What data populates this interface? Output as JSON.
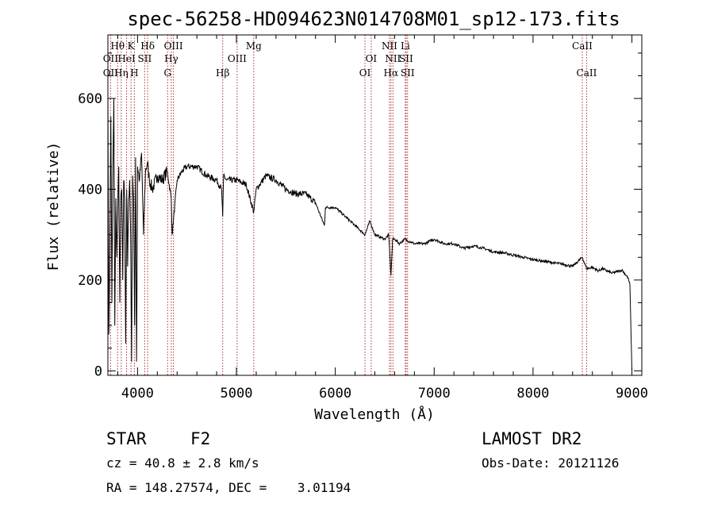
{
  "chart_data": {
    "type": "line",
    "title": "spec-56258-HD094623N014708M01_sp12-173.fits",
    "xlabel": "Wavelength (Å)",
    "ylabel": "Flux (relative)",
    "xlim": [
      3700,
      9100
    ],
    "ylim": [
      -10,
      740
    ],
    "x_ticks": [
      4000,
      5000,
      6000,
      7000,
      8000,
      9000
    ],
    "y_ticks": [
      0,
      200,
      400,
      600
    ],
    "grid": false,
    "series": [
      {
        "x": [
          3700,
          3710,
          3720,
          3730,
          3740,
          3750,
          3760,
          3770,
          3780,
          3790,
          3800,
          3810,
          3820,
          3830,
          3840,
          3850,
          3860,
          3870,
          3880,
          3890,
          3900,
          3910,
          3920,
          3930,
          3940,
          3950,
          3960,
          3970,
          3980,
          3990,
          4000,
          4020,
          4040,
          4060,
          4080,
          4100,
          4120,
          4150,
          4200,
          4250,
          4300,
          4340,
          4350,
          4400,
          4450,
          4500,
          4600,
          4700,
          4800,
          4850,
          4861,
          4870,
          4900,
          5000,
          5100,
          5175,
          5200,
          5300,
          5400,
          5500,
          5600,
          5700,
          5800,
          5890,
          5900,
          6000,
          6100,
          6200,
          6300,
          6350,
          6400,
          6500,
          6540,
          6563,
          6580,
          6600,
          6650,
          6700,
          6800,
          6900,
          7000,
          7100,
          7200,
          7300,
          7400,
          7500,
          7600,
          7700,
          7800,
          7900,
          8000,
          8100,
          8200,
          8300,
          8400,
          8498,
          8542,
          8600,
          8662,
          8700,
          8800,
          8900,
          8960,
          8980,
          9000
        ],
        "y": [
          620,
          80,
          300,
          560,
          150,
          420,
          600,
          100,
          380,
          250,
          350,
          450,
          150,
          380,
          400,
          200,
          420,
          380,
          60,
          400,
          230,
          380,
          420,
          300,
          20,
          430,
          380,
          100,
          470,
          20,
          450,
          420,
          480,
          300,
          440,
          460,
          420,
          400,
          430,
          420,
          440,
          380,
          300,
          420,
          440,
          450,
          450,
          430,
          420,
          400,
          340,
          430,
          420,
          420,
          410,
          350,
          400,
          430,
          420,
          400,
          390,
          390,
          370,
          320,
          360,
          360,
          340,
          320,
          300,
          330,
          300,
          290,
          300,
          210,
          290,
          290,
          280,
          290,
          280,
          280,
          290,
          280,
          280,
          270,
          275,
          270,
          262,
          260,
          255,
          250,
          245,
          242,
          238,
          235,
          230,
          250,
          225,
          228,
          220,
          225,
          215,
          222,
          205,
          190,
          0
        ]
      }
    ],
    "spectral_lines": [
      {
        "name": "OII",
        "wl": 3727,
        "row": 2
      },
      {
        "name": "OII",
        "wl": 3727,
        "row": 3
      },
      {
        "name": "Hθ",
        "wl": 3798,
        "row": 1
      },
      {
        "name": "HeI",
        "wl": 3889,
        "row": 2
      },
      {
        "name": "Hη",
        "wl": 3835,
        "row": 3
      },
      {
        "name": "K",
        "wl": 3934,
        "row": 1
      },
      {
        "name": "H",
        "wl": 3968,
        "row": 3
      },
      {
        "name": "SII",
        "wl": 4072,
        "row": 2
      },
      {
        "name": "Hδ",
        "wl": 4102,
        "row": 1
      },
      {
        "name": "OIII",
        "wl": 4363,
        "row": 1
      },
      {
        "name": "Hγ",
        "wl": 4341,
        "row": 2
      },
      {
        "name": "G",
        "wl": 4304,
        "row": 3
      },
      {
        "name": "Hβ",
        "wl": 4861,
        "row": 3
      },
      {
        "name": "OIII",
        "wl": 5007,
        "row": 2
      },
      {
        "name": "Mg",
        "wl": 5175,
        "row": 1
      },
      {
        "name": "OI",
        "wl": 6300,
        "row": 3
      },
      {
        "name": "OI",
        "wl": 6363,
        "row": 2
      },
      {
        "name": "NII",
        "wl": 6548,
        "row": 1
      },
      {
        "name": "NII",
        "wl": 6583,
        "row": 2
      },
      {
        "name": "Hα",
        "wl": 6563,
        "row": 3
      },
      {
        "name": "Li",
        "wl": 6708,
        "row": 1
      },
      {
        "name": "SII",
        "wl": 6716,
        "row": 2
      },
      {
        "name": "SII",
        "wl": 6731,
        "row": 3
      },
      {
        "name": "CaII",
        "wl": 8498,
        "row": 1
      },
      {
        "name": "CaII",
        "wl": 8542,
        "row": 3
      }
    ]
  },
  "info": {
    "object_class": "STAR",
    "subclass": "F2",
    "survey": "LAMOST DR2",
    "redshift": "cz = 40.8 ± 2.8 km/s",
    "obs_date": "Obs-Date: 20121126",
    "coords": "RA = 148.27574, DEC =    3.01194"
  }
}
